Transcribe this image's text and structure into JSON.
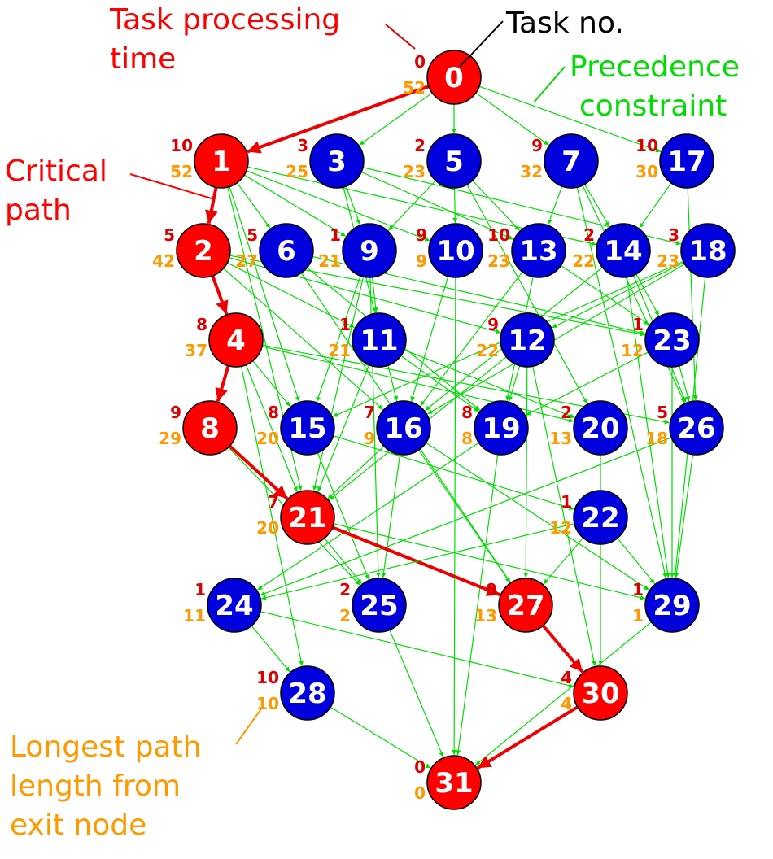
{
  "colors": {
    "critical": "#ff0000",
    "normal": "#0000dd",
    "edge": "#00dd00",
    "critical_edge": "#ee0000",
    "processing": "#dd0000",
    "longest": "#ff9900",
    "task_no": "#000000",
    "precedence": "#00dd00"
  },
  "annotations": {
    "processing_time": [
      "Task processing",
      "time"
    ],
    "task_no": [
      "Task no."
    ],
    "precedence": [
      "Precedence",
      "constraint"
    ],
    "critical_path": [
      "Critical",
      "path"
    ],
    "longest_path": [
      "Longest path",
      "length from",
      "exit node"
    ]
  },
  "tasks": [
    {
      "id": "0",
      "proc": "0",
      "lp": "52",
      "critical": true
    },
    {
      "id": "1",
      "proc": "10",
      "lp": "52",
      "critical": true
    },
    {
      "id": "3",
      "proc": "3",
      "lp": "25",
      "critical": false
    },
    {
      "id": "5",
      "proc": "2",
      "lp": "23",
      "critical": false
    },
    {
      "id": "7",
      "proc": "9",
      "lp": "32",
      "critical": false
    },
    {
      "id": "17",
      "proc": "10",
      "lp": "30",
      "critical": false
    },
    {
      "id": "2",
      "proc": "5",
      "lp": "42",
      "critical": true
    },
    {
      "id": "6",
      "proc": "5",
      "lp": "27",
      "critical": false
    },
    {
      "id": "9",
      "proc": "1",
      "lp": "21",
      "critical": false
    },
    {
      "id": "10",
      "proc": "9",
      "lp": "9",
      "critical": false
    },
    {
      "id": "13",
      "proc": "10",
      "lp": "23",
      "critical": false
    },
    {
      "id": "14",
      "proc": "2",
      "lp": "22",
      "critical": false
    },
    {
      "id": "18",
      "proc": "3",
      "lp": "23",
      "critical": false
    },
    {
      "id": "4",
      "proc": "8",
      "lp": "37",
      "critical": true
    },
    {
      "id": "11",
      "proc": "1",
      "lp": "21",
      "critical": false
    },
    {
      "id": "12",
      "proc": "9",
      "lp": "22",
      "critical": false
    },
    {
      "id": "23",
      "proc": "1",
      "lp": "12",
      "critical": false
    },
    {
      "id": "8",
      "proc": "9",
      "lp": "29",
      "critical": true
    },
    {
      "id": "15",
      "proc": "8",
      "lp": "20",
      "critical": false
    },
    {
      "id": "16",
      "proc": "7",
      "lp": "9",
      "critical": false
    },
    {
      "id": "19",
      "proc": "8",
      "lp": "8",
      "critical": false
    },
    {
      "id": "20",
      "proc": "2",
      "lp": "13",
      "critical": false
    },
    {
      "id": "26",
      "proc": "5",
      "lp": "18",
      "critical": false
    },
    {
      "id": "21",
      "proc": "7",
      "lp": "20",
      "critical": true
    },
    {
      "id": "22",
      "proc": "1",
      "lp": "12",
      "critical": false
    },
    {
      "id": "24",
      "proc": "1",
      "lp": "11",
      "critical": false
    },
    {
      "id": "25",
      "proc": "2",
      "lp": "2",
      "critical": false
    },
    {
      "id": "27",
      "proc": "9",
      "lp": "13",
      "critical": true
    },
    {
      "id": "29",
      "proc": "1",
      "lp": "1",
      "critical": false
    },
    {
      "id": "28",
      "proc": "10",
      "lp": "10",
      "critical": false
    },
    {
      "id": "30",
      "proc": "4",
      "lp": "4",
      "critical": true
    },
    {
      "id": "31",
      "proc": "0",
      "lp": "0",
      "critical": true
    }
  ],
  "edges": [
    [
      "0",
      "1",
      true
    ],
    [
      "0",
      "3",
      false
    ],
    [
      "0",
      "5",
      false
    ],
    [
      "0",
      "7",
      false
    ],
    [
      "0",
      "17",
      false
    ],
    [
      "1",
      "2",
      true
    ],
    [
      "1",
      "6",
      false
    ],
    [
      "1",
      "9",
      false
    ],
    [
      "1",
      "10",
      false
    ],
    [
      "1",
      "14",
      false
    ],
    [
      "1",
      "15",
      false
    ],
    [
      "1",
      "21",
      false
    ],
    [
      "3",
      "9",
      false
    ],
    [
      "3",
      "13",
      false
    ],
    [
      "3",
      "18",
      false
    ],
    [
      "3",
      "16",
      false
    ],
    [
      "5",
      "9",
      false
    ],
    [
      "5",
      "10",
      false
    ],
    [
      "5",
      "13",
      false
    ],
    [
      "5",
      "20",
      false
    ],
    [
      "7",
      "13",
      false
    ],
    [
      "7",
      "14",
      false
    ],
    [
      "7",
      "29",
      false
    ],
    [
      "7",
      "26",
      false
    ],
    [
      "17",
      "14",
      false
    ],
    [
      "17",
      "26",
      false
    ],
    [
      "2",
      "4",
      true
    ],
    [
      "2",
      "11",
      false
    ],
    [
      "2",
      "12",
      false
    ],
    [
      "2",
      "23",
      false
    ],
    [
      "2",
      "16",
      false
    ],
    [
      "6",
      "19",
      false
    ],
    [
      "6",
      "27",
      false
    ],
    [
      "6",
      "23",
      false
    ],
    [
      "9",
      "11",
      false
    ],
    [
      "9",
      "15",
      false
    ],
    [
      "9",
      "21",
      false
    ],
    [
      "9",
      "25",
      false
    ],
    [
      "10",
      "16",
      false
    ],
    [
      "10",
      "31",
      false
    ],
    [
      "13",
      "16",
      false
    ],
    [
      "13",
      "19",
      false
    ],
    [
      "13",
      "23",
      false
    ],
    [
      "14",
      "16",
      false
    ],
    [
      "14",
      "23",
      false
    ],
    [
      "14",
      "26",
      false
    ],
    [
      "14",
      "29",
      false
    ],
    [
      "18",
      "12",
      false
    ],
    [
      "18",
      "15",
      false
    ],
    [
      "18",
      "16",
      false
    ],
    [
      "18",
      "29",
      false
    ],
    [
      "4",
      "8",
      true
    ],
    [
      "4",
      "15",
      false
    ],
    [
      "4",
      "21",
      false
    ],
    [
      "4",
      "28",
      false
    ],
    [
      "4",
      "26",
      false
    ],
    [
      "4",
      "20",
      false
    ],
    [
      "11",
      "19",
      false
    ],
    [
      "11",
      "20",
      false
    ],
    [
      "11",
      "21",
      false
    ],
    [
      "12",
      "19",
      false
    ],
    [
      "12",
      "27",
      false
    ],
    [
      "12",
      "30",
      false
    ],
    [
      "12",
      "21",
      false
    ],
    [
      "23",
      "19",
      false
    ],
    [
      "23",
      "26",
      false
    ],
    [
      "23",
      "29",
      false
    ],
    [
      "8",
      "21",
      true
    ],
    [
      "8",
      "25",
      false
    ],
    [
      "15",
      "22",
      false
    ],
    [
      "15",
      "25",
      false
    ],
    [
      "16",
      "21",
      false
    ],
    [
      "16",
      "25",
      false
    ],
    [
      "16",
      "27",
      false
    ],
    [
      "16",
      "29",
      false
    ],
    [
      "19",
      "31",
      false
    ],
    [
      "19",
      "24",
      false
    ],
    [
      "20",
      "30",
      false
    ],
    [
      "26",
      "24",
      false
    ],
    [
      "26",
      "29",
      false
    ],
    [
      "21",
      "27",
      true
    ],
    [
      "21",
      "25",
      false
    ],
    [
      "21",
      "29",
      false
    ],
    [
      "22",
      "27",
      false
    ],
    [
      "22",
      "24",
      false
    ],
    [
      "22",
      "29",
      false
    ],
    [
      "24",
      "28",
      false
    ],
    [
      "24",
      "30",
      false
    ],
    [
      "25",
      "31",
      false
    ],
    [
      "27",
      "30",
      true
    ],
    [
      "29",
      "31",
      false
    ],
    [
      "28",
      "31",
      false
    ],
    [
      "30",
      "31",
      true
    ]
  ]
}
